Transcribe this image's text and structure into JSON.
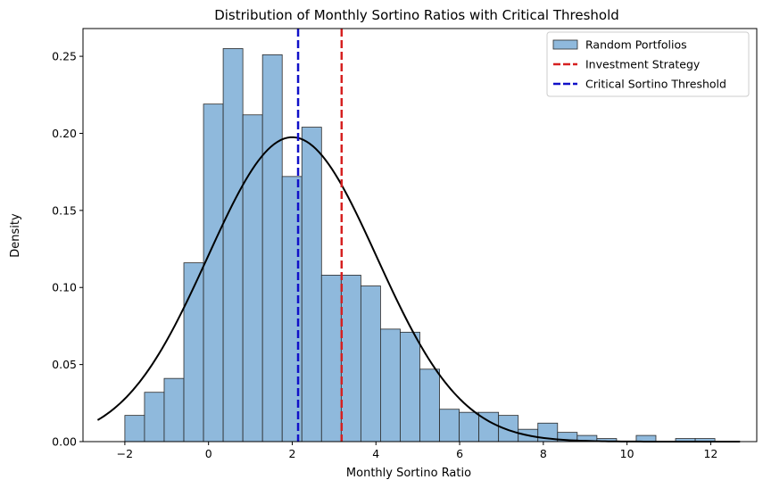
{
  "chart_data": {
    "type": "bar",
    "title": "Distribution of Monthly Sortino Ratios with Critical Threshold",
    "xlabel": "Monthly Sortino Ratio",
    "ylabel": "Density",
    "xlim": [
      -3.0,
      13.1
    ],
    "ylim": [
      0,
      0.268
    ],
    "xticks": [
      -2,
      0,
      2,
      4,
      6,
      8,
      10,
      12
    ],
    "yticks": [
      0.0,
      0.05,
      0.1,
      0.15,
      0.2,
      0.25
    ],
    "ytick_labels": [
      "0.00",
      "0.05",
      "0.10",
      "0.15",
      "0.20",
      "0.25"
    ],
    "grid": false,
    "legend_position": "top-right",
    "histogram": {
      "name": "Random Portfolios",
      "color": "#8fb9dc",
      "edge_color": "#2a2a2a",
      "bin_edges": [
        -2.0,
        -1.53,
        -1.06,
        -0.59,
        -0.12,
        0.35,
        0.82,
        1.29,
        1.76,
        2.23,
        2.7,
        3.17,
        3.64,
        4.11,
        4.58,
        5.05,
        5.52,
        5.99,
        6.46,
        6.93,
        7.4,
        7.87,
        8.34,
        8.81,
        9.28,
        9.75,
        10.22,
        10.69,
        11.16,
        11.63,
        12.1
      ],
      "values": [
        0.017,
        0.032,
        0.041,
        0.116,
        0.219,
        0.255,
        0.212,
        0.251,
        0.172,
        0.204,
        0.108,
        0.108,
        0.101,
        0.073,
        0.071,
        0.047,
        0.021,
        0.019,
        0.019,
        0.017,
        0.008,
        0.012,
        0.006,
        0.004,
        0.002,
        0.0,
        0.004,
        0.0,
        0.002,
        0.002
      ]
    },
    "fit_curve": {
      "color": "#000000",
      "type": "normal",
      "mean": 2.0,
      "std": 2.02,
      "x_range": [
        -2.65,
        12.7
      ]
    },
    "vlines": [
      {
        "name": "Investment Strategy",
        "x": 3.18,
        "color": "#d62020"
      },
      {
        "name": "Critical Sortino Threshold",
        "x": 2.14,
        "color": "#1010c8"
      }
    ],
    "legend": [
      {
        "label": "Random Portfolios",
        "kind": "patch",
        "color": "#8fb9dc"
      },
      {
        "label": "Investment Strategy",
        "kind": "dash",
        "color": "#d62020"
      },
      {
        "label": "Critical Sortino Threshold",
        "kind": "dash",
        "color": "#1010c8"
      }
    ]
  }
}
